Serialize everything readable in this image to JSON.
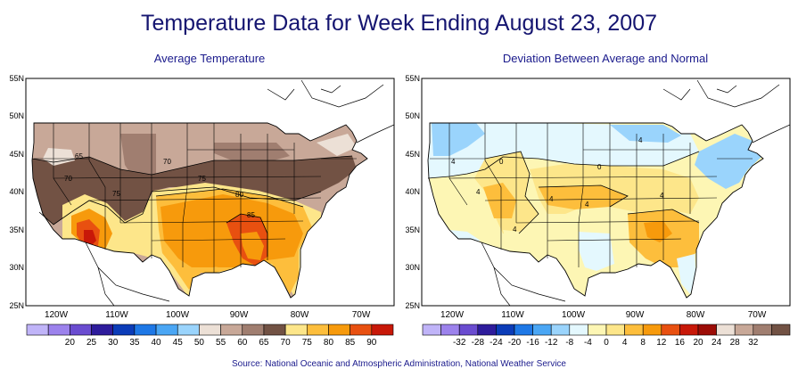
{
  "title": "Temperature Data for Week Ending August 23, 2007",
  "source": "Source:  National Oceanic and Atmospheric Administration, National Weather Service",
  "lat_labels": [
    "55N",
    "50N",
    "45N",
    "40N",
    "35N",
    "30N",
    "25N"
  ],
  "lon_labels": [
    "120W",
    "110W",
    "100W",
    "90W",
    "80W",
    "70W"
  ],
  "left_map": {
    "subtitle": "Average Temperature",
    "contour_labels": [
      "65",
      "70",
      "75",
      "70",
      "75",
      "80",
      "85"
    ],
    "legend_labels": [
      "20",
      "25",
      "30",
      "35",
      "40",
      "45",
      "50",
      "55",
      "60",
      "65",
      "70",
      "75",
      "80",
      "85",
      "90"
    ],
    "legend_colors": [
      "#c0b4f8",
      "#9c82ec",
      "#6a4cd0",
      "#2e1c9c",
      "#0b3cb8",
      "#1e78e6",
      "#4aa6f4",
      "#9ad4fc",
      "#ece0d6",
      "#c8a898",
      "#a07e70",
      "#725244",
      "#fde68a",
      "#fdbe3c",
      "#f79a0c",
      "#e85010",
      "#c81808"
    ]
  },
  "right_map": {
    "subtitle": "Deviation Between Average and Normal",
    "contour_labels": [
      "4",
      "0",
      "4",
      "4",
      "4",
      "4",
      "4",
      "4",
      "0"
    ],
    "legend_labels": [
      "-32",
      "-28",
      "-24",
      "-20",
      "-16",
      "-12",
      "-8",
      "-4",
      "0",
      "4",
      "8",
      "12",
      "16",
      "20",
      "24",
      "28",
      "32"
    ],
    "legend_colors": [
      "#c0b4f8",
      "#9c82ec",
      "#6a4cd0",
      "#2e1c9c",
      "#0b3cb8",
      "#1e78e6",
      "#4aa6f4",
      "#9ad4fc",
      "#e4f8fe",
      "#fdf6b4",
      "#fde68a",
      "#fdbe3c",
      "#f79a0c",
      "#e85010",
      "#c81808",
      "#9c0c06",
      "#ece0d6",
      "#c8a898",
      "#a07e70",
      "#725244"
    ]
  }
}
